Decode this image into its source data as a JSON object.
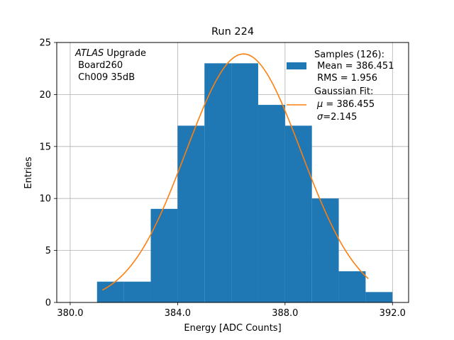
{
  "chart_data": {
    "type": "bar",
    "title": "Run 224",
    "xlabel": "Energy [ADC Counts]",
    "ylabel": "Entries",
    "xlim": [
      379.5,
      392.6
    ],
    "ylim": [
      0,
      25
    ],
    "xticks": [
      380.0,
      384.0,
      388.0,
      392.0
    ],
    "xtick_labels": [
      "380.0",
      "384.0",
      "388.0",
      "392.0"
    ],
    "yticks": [
      0,
      5,
      10,
      15,
      20,
      25
    ],
    "ytick_labels": [
      "0",
      "5",
      "10",
      "15",
      "20",
      "25"
    ],
    "grid": true,
    "bin_edges": [
      381,
      382,
      383,
      384,
      385,
      386,
      387,
      388,
      389,
      390,
      391,
      392
    ],
    "counts": [
      2,
      2,
      9,
      17,
      23,
      23,
      19,
      17,
      10,
      3,
      1
    ],
    "bar_color": "#1f77b4",
    "fit": {
      "mu": 386.455,
      "sigma": 2.145,
      "amplitude": 23.9,
      "x_range": [
        381.2,
        391.1
      ],
      "color": "#ff7f0e"
    },
    "annotation": {
      "italic": "ATLAS",
      "rest": " Upgrade",
      "line2": " Board260",
      "line3": " Ch009 35dB"
    },
    "legend": {
      "position": "top-right",
      "samples": {
        "line1": "Samples (126):",
        "line2": " Mean = 386.451",
        "line3": " RMS = 1.956"
      },
      "fit": {
        "line1": "Gaussian Fit:",
        "mu_sym": "μ",
        "mu_rest": " = 386.455",
        "sigma_sym": "σ",
        "sigma_rest": "=2.145"
      }
    }
  }
}
